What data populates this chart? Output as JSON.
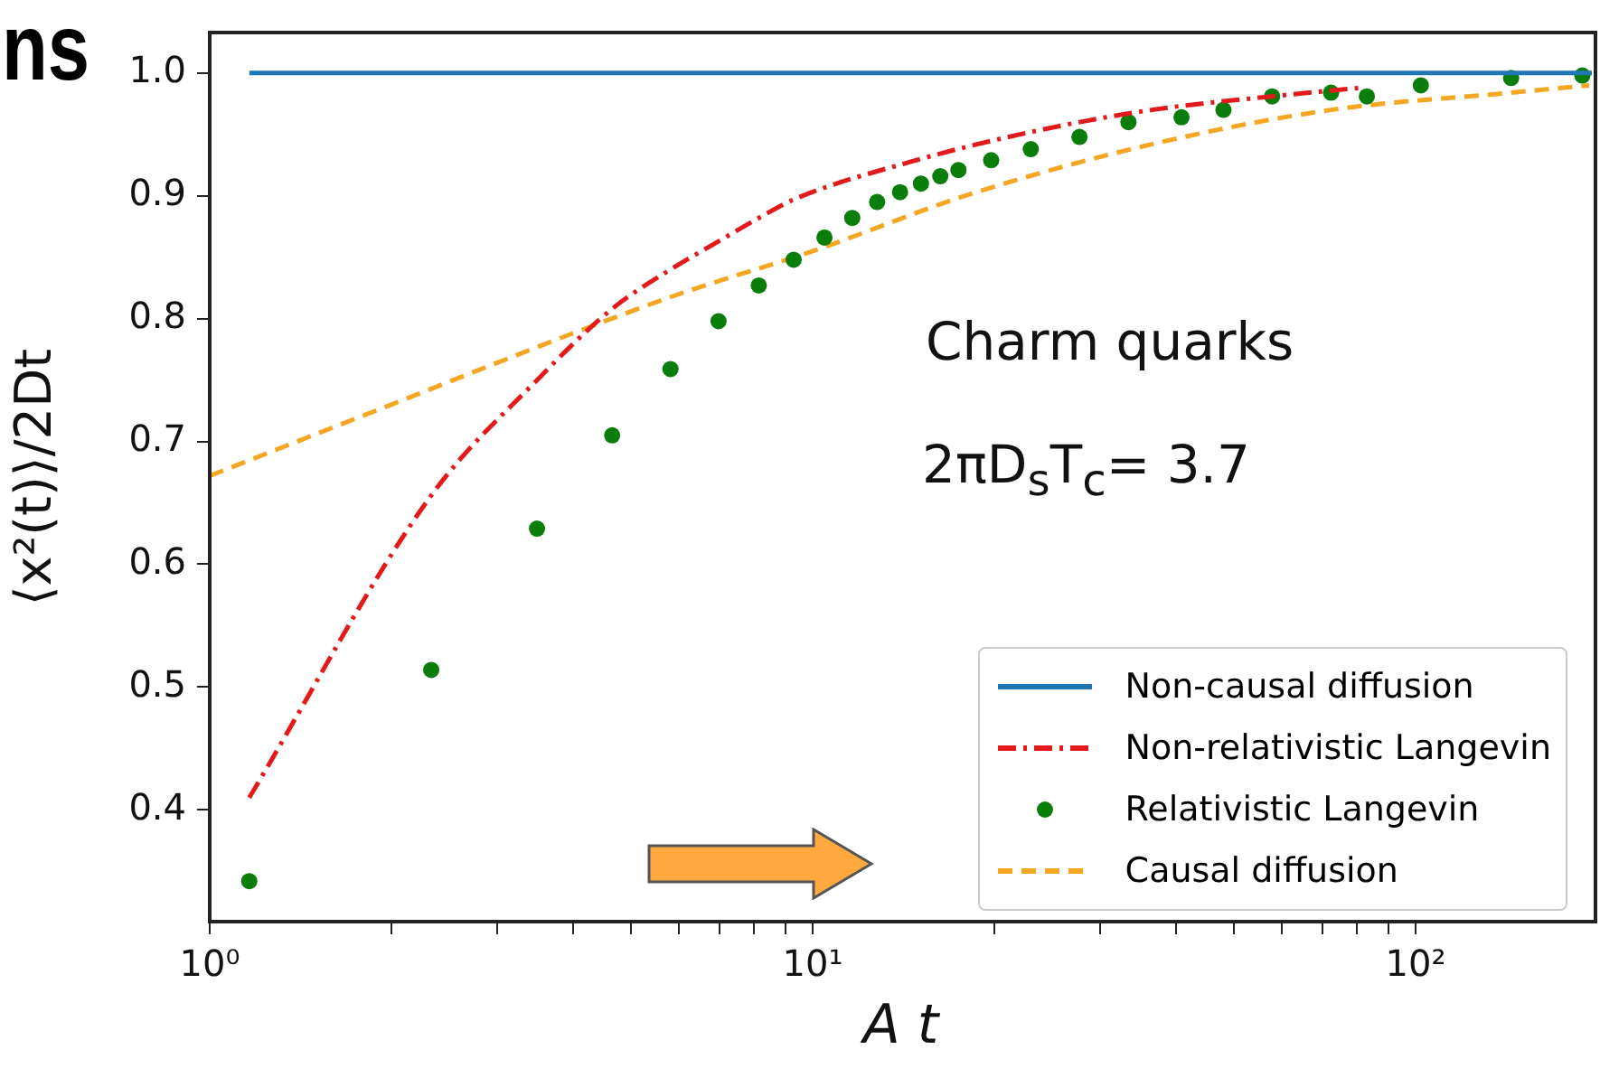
{
  "chart_data": {
    "type": "line",
    "title": "ns",
    "xlabel": "A t",
    "ylabel": "⟨x²(t)⟩/2Dt",
    "log": "x",
    "legend": "bottom right",
    "grid": false,
    "xlim": [
      1,
      196
    ],
    "xticks": [
      {
        "value": 1,
        "label": "10⁰"
      },
      {
        "value": 2,
        "label": null
      },
      {
        "value": 3,
        "label": null
      },
      {
        "value": 4,
        "label": null
      },
      {
        "value": 5,
        "label": null
      },
      {
        "value": 6,
        "label": null
      },
      {
        "value": 7,
        "label": null
      },
      {
        "value": 8,
        "label": null
      },
      {
        "value": 9,
        "label": null
      },
      {
        "value": 10,
        "label": "10¹"
      },
      {
        "value": 20,
        "label": null
      },
      {
        "value": 30,
        "label": null
      },
      {
        "value": 40,
        "label": null
      },
      {
        "value": 50,
        "label": null
      },
      {
        "value": 60,
        "label": null
      },
      {
        "value": 70,
        "label": null
      },
      {
        "value": 80,
        "label": null
      },
      {
        "value": 90,
        "label": null
      },
      {
        "value": 100,
        "label": "10²"
      }
    ],
    "ylim": [
      0.309,
      1.033
    ],
    "yticks": [
      0.4,
      0.5,
      0.6,
      0.7,
      0.8,
      0.9,
      {
        "value": 1,
        "label": "1.0"
      }
    ],
    "annotations": [
      "Charm quarks",
      "2πD$_{s}$T$_{c}$= 3.7"
    ],
    "series": [
      {
        "name": "Non-causal diffusion",
        "type": "line",
        "color": "#1f77b4",
        "line_style": "solid",
        "marker": "none",
        "x": [
          1.163,
          196
        ],
        "values": [
          1.0,
          1.0
        ]
      },
      {
        "name": "Non-relativistic Langevin",
        "type": "line",
        "color": "#e31a1c",
        "line_style": "dashdot",
        "marker": "none",
        "x": [
          1.163,
          2.33,
          3.49,
          4.65,
          5.81,
          6.98,
          8.14,
          9.3,
          14.6,
          23,
          36.5,
          57.8,
          81
        ],
        "values": [
          0.41,
          0.656,
          0.75,
          0.808,
          0.84,
          0.863,
          0.882,
          0.897,
          0.928,
          0.952,
          0.97,
          0.981,
          0.988
        ]
      },
      {
        "name": "Relativistic Langevin",
        "type": "scatter",
        "color": "#0a7d0a",
        "marker": "circle",
        "x": [
          1.163,
          2.33,
          3.49,
          4.65,
          5.81,
          6.98,
          8.14,
          9.3,
          10.46,
          11.63,
          12.79,
          13.96,
          15.12,
          16.28,
          17.45,
          19.77,
          23.0,
          27.7,
          33.4,
          40.9,
          48,
          57.8,
          72.4,
          83,
          102,
          144,
          189
        ],
        "values": [
          0.342,
          0.514,
          0.629,
          0.705,
          0.759,
          0.798,
          0.827,
          0.848,
          0.866,
          0.882,
          0.895,
          0.903,
          0.91,
          0.916,
          0.921,
          0.929,
          0.938,
          0.948,
          0.96,
          0.964,
          0.97,
          0.981,
          0.984,
          0.981,
          0.99,
          0.996,
          0.998
        ]
      },
      {
        "name": "Causal diffusion",
        "type": "line",
        "color": "#f5a623",
        "line_style": "dashed",
        "marker": "none",
        "x": [
          1,
          2,
          4,
          6,
          10,
          18.4,
          36.5,
          72.4,
          144,
          194
        ],
        "values": [
          0.672,
          0.73,
          0.788,
          0.82,
          0.855,
          0.902,
          0.942,
          0.97,
          0.984,
          0.99
        ]
      }
    ]
  }
}
